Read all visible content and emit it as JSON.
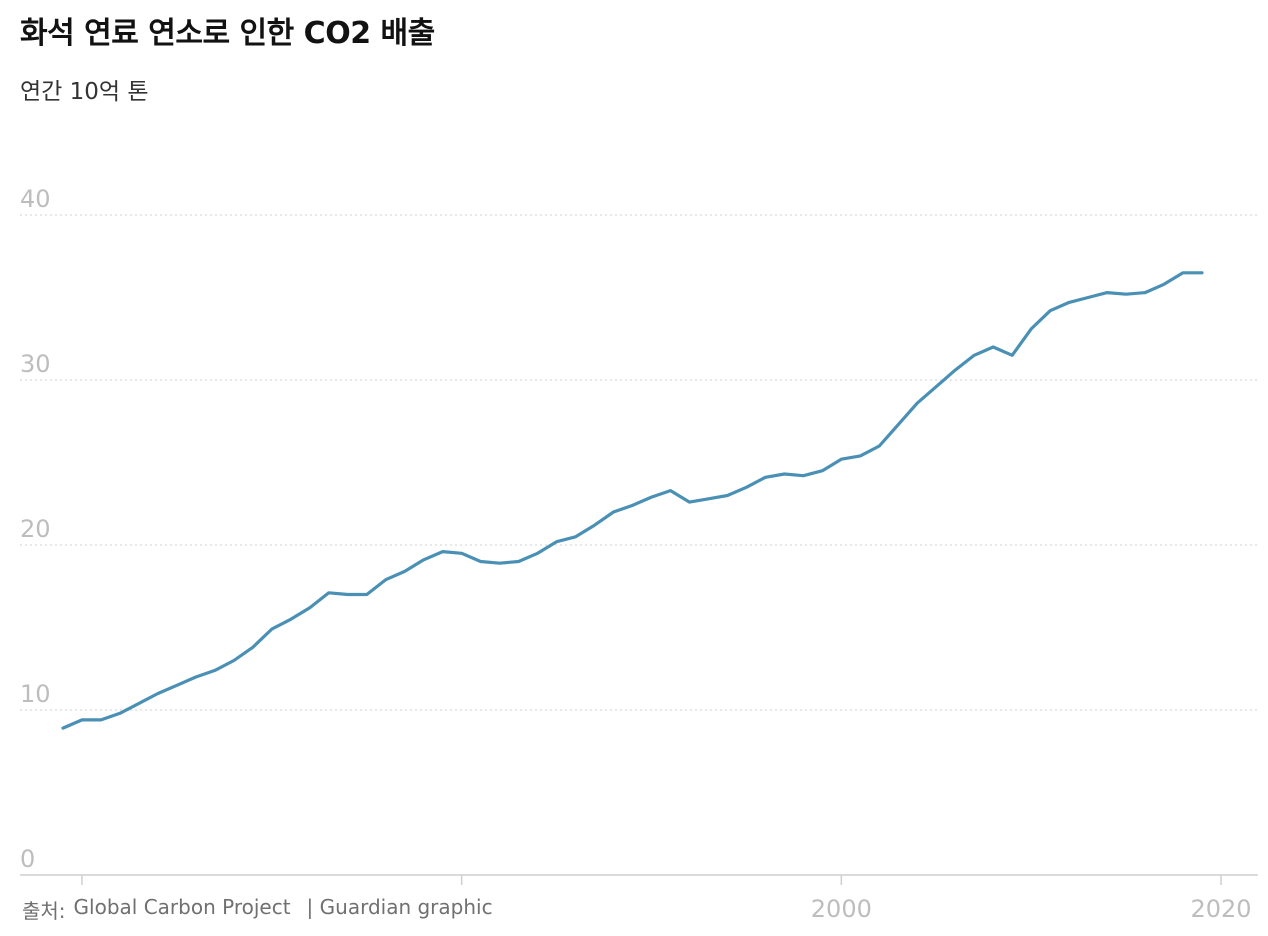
{
  "header": {
    "title": "화석 연료 연소로 인한 CO2 배출",
    "subtitle": "연간 10억 톤"
  },
  "footer": {
    "source_label": "출처:",
    "source_name": "Global Carbon Project",
    "credit": "| Guardian graphic"
  },
  "colors": {
    "line": "#4a90b5",
    "axis_text": "#bdbdbd",
    "gridline": "#d9d9d9",
    "baseline": "#cfcfcf"
  },
  "chart_data": {
    "type": "line",
    "title": "화석 연료 연소로 인한 CO2 배출",
    "subtitle": "연간 10억 톤",
    "ylim": [
      0,
      40
    ],
    "xlim": [
      1959,
      2021
    ],
    "yticks": [
      0,
      10,
      20,
      30,
      40
    ],
    "xticks": [
      1960,
      1980,
      2000,
      2020
    ],
    "xtick_labels": [
      "",
      "",
      "2000",
      "2020"
    ],
    "grid": true,
    "series": [
      {
        "x": [
          1959,
          1960,
          1961,
          1962,
          1963,
          1964,
          1965,
          1966,
          1967,
          1968,
          1969,
          1970,
          1971,
          1972,
          1973,
          1974,
          1975,
          1976,
          1977,
          1978,
          1979,
          1980,
          1981,
          1982,
          1983,
          1984,
          1985,
          1986,
          1987,
          1988,
          1989,
          1990,
          1991,
          1992,
          1993,
          1994,
          1995,
          1996,
          1997,
          1998,
          1999,
          2000,
          2001,
          2002,
          2003,
          2004,
          2005,
          2006,
          2007,
          2008,
          2009,
          2010,
          2011,
          2012,
          2013,
          2014,
          2015,
          2016,
          2017,
          2018,
          2019
        ],
        "y": [
          8.9,
          9.4,
          9.4,
          9.8,
          10.4,
          11.0,
          11.5,
          12.0,
          12.4,
          13.0,
          13.8,
          14.9,
          15.5,
          16.2,
          17.1,
          17.0,
          17.0,
          17.9,
          18.4,
          19.1,
          19.6,
          19.5,
          19.0,
          18.9,
          19.0,
          19.5,
          20.2,
          20.5,
          21.2,
          22.0,
          22.4,
          22.9,
          23.3,
          22.6,
          22.8,
          23.0,
          23.5,
          24.1,
          24.3,
          24.2,
          24.5,
          25.2,
          25.4,
          26.0,
          27.3,
          28.6,
          29.6,
          30.6,
          31.5,
          32.0,
          31.5,
          33.1,
          34.2,
          34.7,
          35.0,
          35.3,
          35.2,
          35.3,
          35.8,
          36.5,
          36.5
        ]
      }
    ]
  }
}
